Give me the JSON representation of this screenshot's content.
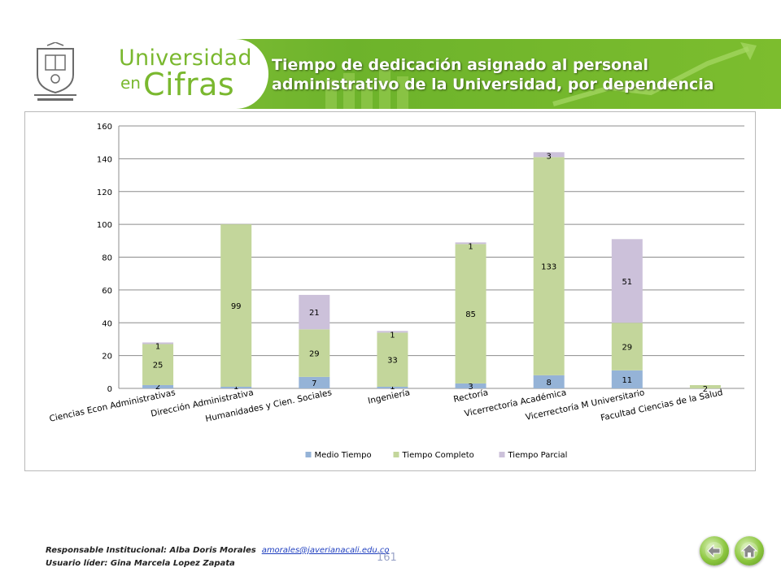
{
  "header": {
    "title": "Tiempo de dedicación asignado al personal administrativo de la Universidad, por dependencia",
    "brand_line1": "Universidad",
    "brand_en": "en",
    "brand_cifras": "Cifras",
    "colors": {
      "banner": "#7cbd2e",
      "brand_text": "#7ab82f"
    }
  },
  "chart_data": {
    "type": "bar",
    "stacked": true,
    "categories": [
      "Ciencias Econ Administrativas",
      "Dirección Administrativa",
      "Humanidades y Cien. Sociales",
      "Ingeniería",
      "Rectoría",
      "Vicerrectoría Académica",
      "Vicerrectoría M Universitario",
      "Facultad Ciencias de la Salud"
    ],
    "series": [
      {
        "name": "Medio Tiempo",
        "color": "#95b3d7",
        "values": [
          2,
          1,
          7,
          1,
          3,
          8,
          11,
          0
        ]
      },
      {
        "name": "Tiempo Completo",
        "color": "#c3d69b",
        "values": [
          25,
          99,
          29,
          33,
          85,
          133,
          29,
          2
        ]
      },
      {
        "name": "Tiempo Parcial",
        "color": "#ccc1da",
        "values": [
          1,
          0,
          21,
          1,
          1,
          3,
          51,
          0
        ]
      }
    ],
    "ylim": [
      0,
      160
    ],
    "yticks": [
      0,
      20,
      40,
      60,
      80,
      100,
      120,
      140,
      160
    ],
    "grid": true,
    "legend_position": "bottom"
  },
  "footer": {
    "responsable_label": "Responsable Institucional: Alba Doris Morales",
    "email": "amorales@javerianacali.edu.co",
    "usuario_label": "Usuario líder: Gina Marcela Lopez Zapata",
    "page_number": "161"
  },
  "nav": {
    "back_icon": "back-arrow-icon",
    "home_icon": "home-icon"
  }
}
